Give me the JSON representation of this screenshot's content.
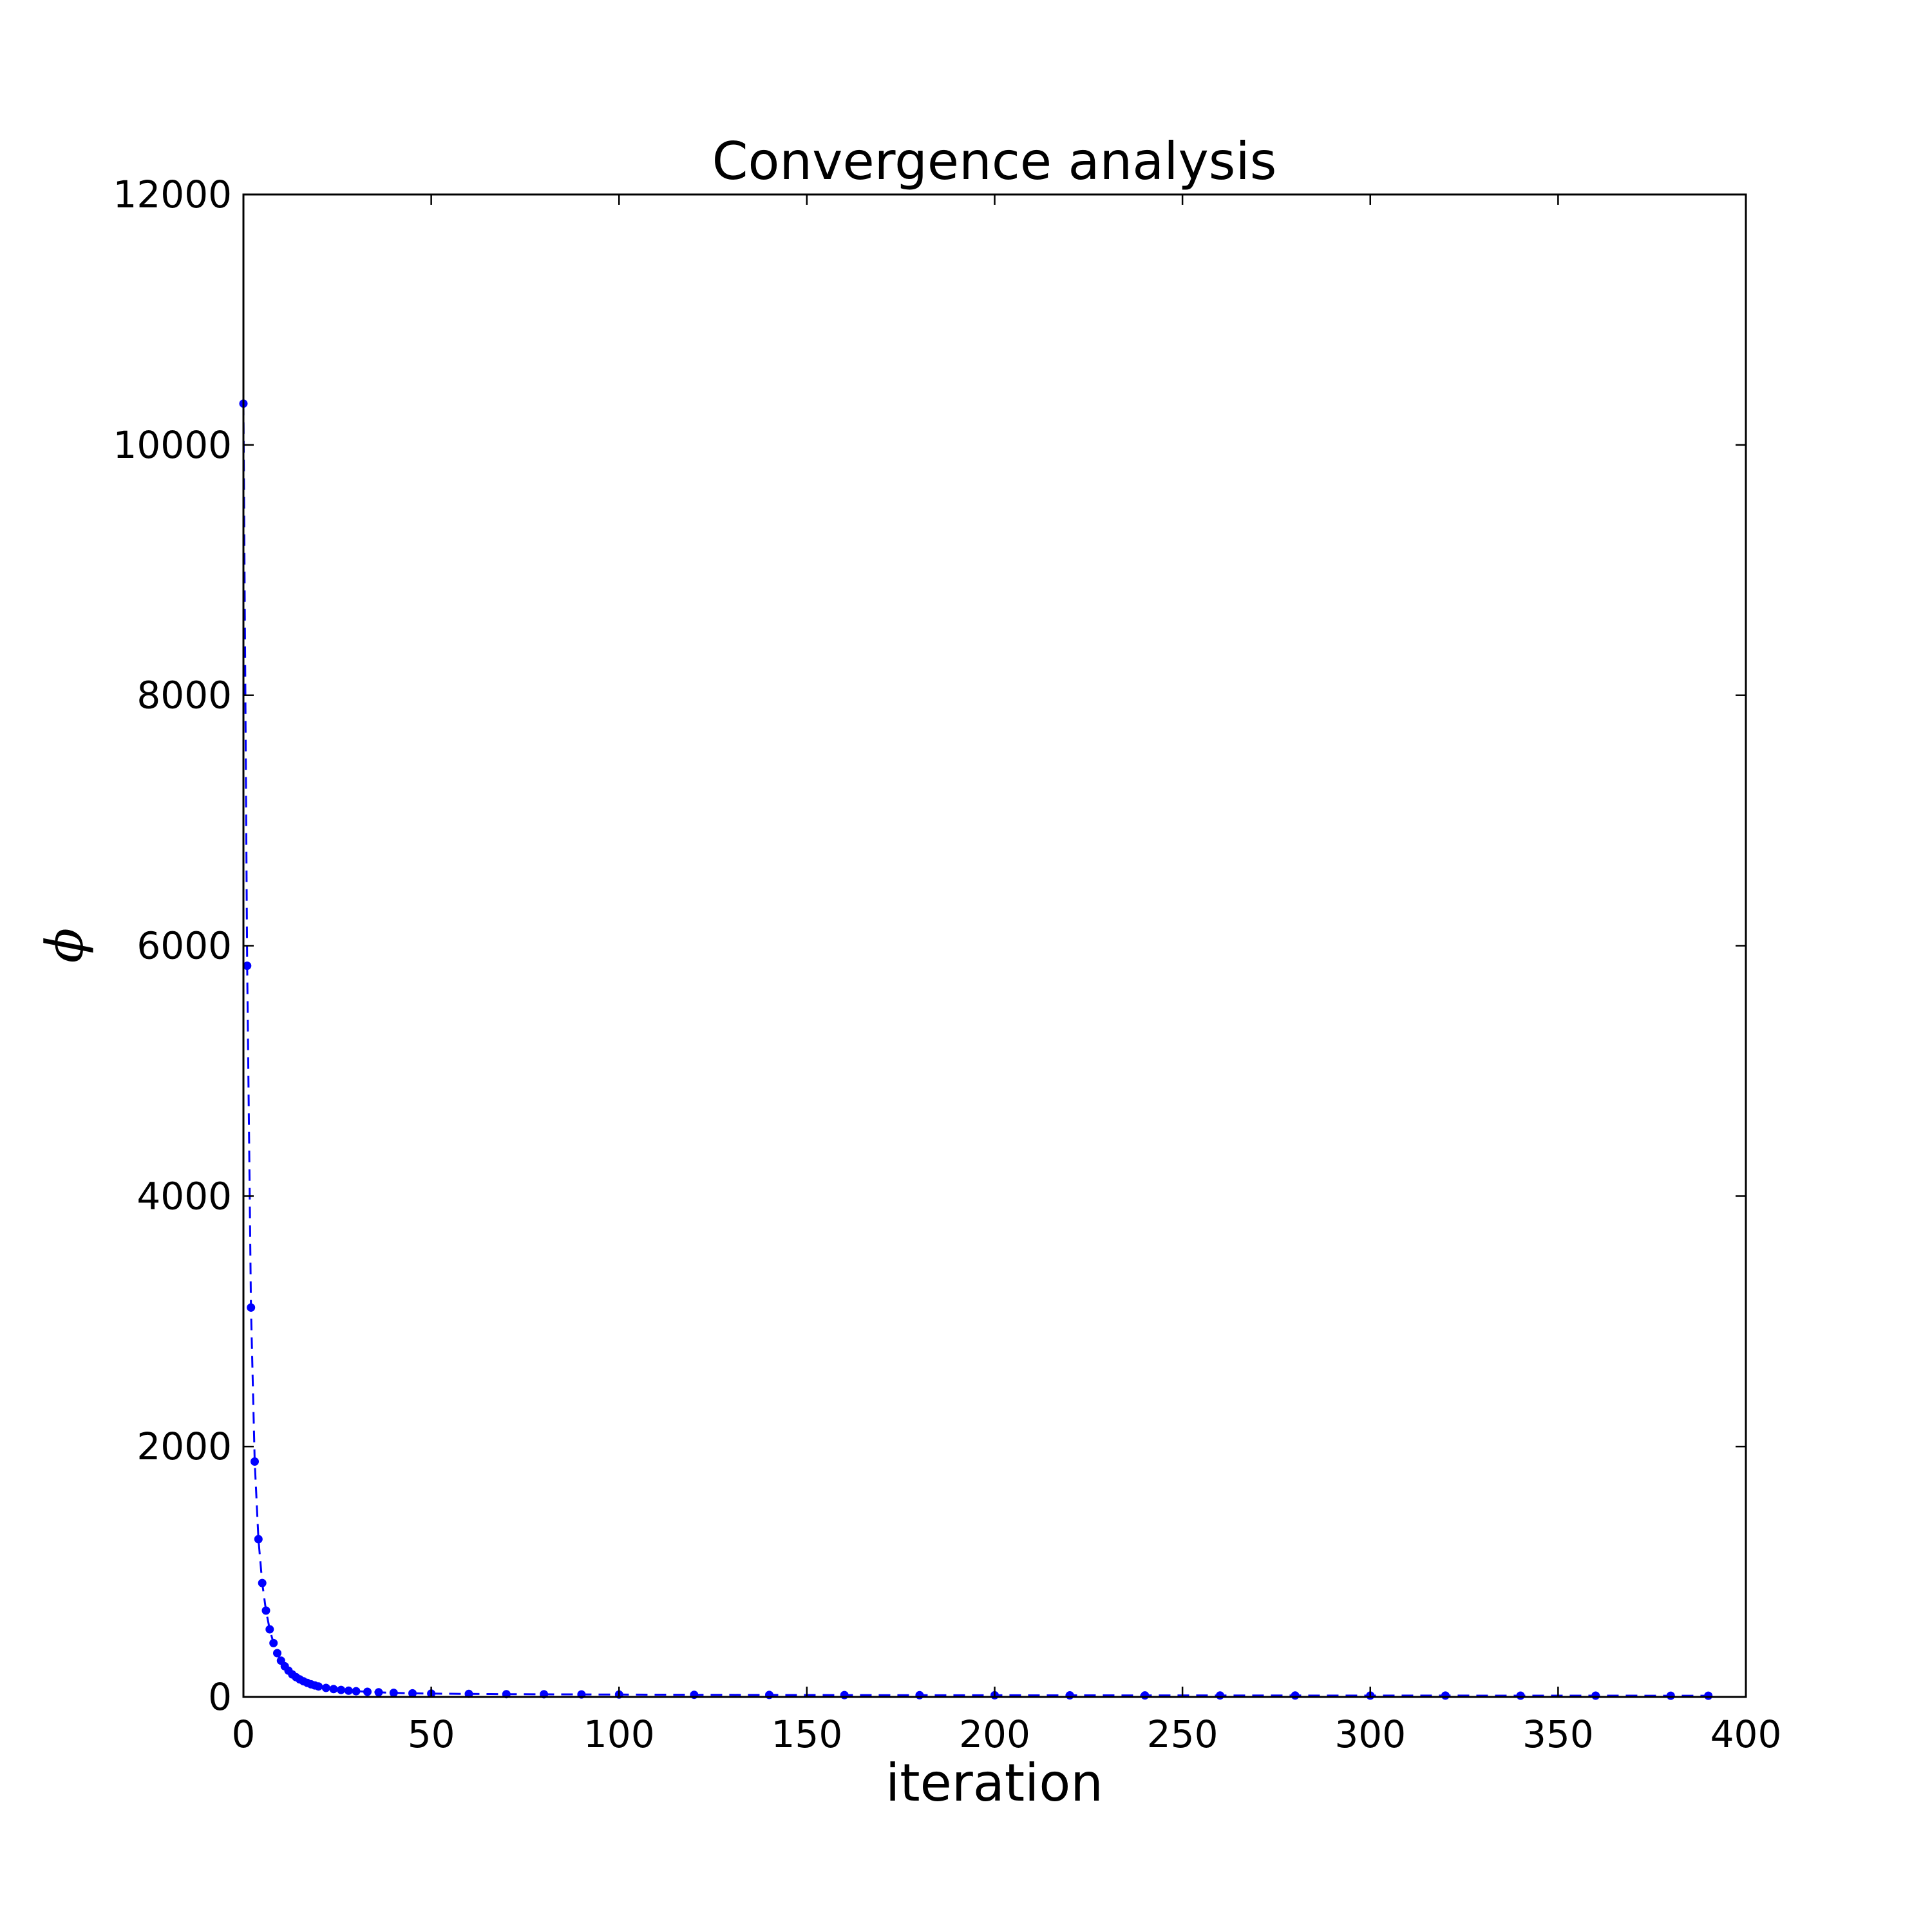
{
  "chart_data": {
    "type": "line",
    "title": "Convergence analysis",
    "xlabel": "iteration",
    "ylabel": "ϕ",
    "xlim": [
      0,
      400
    ],
    "ylim": [
      0,
      12000
    ],
    "x_ticks": [
      "0",
      "50",
      "100",
      "150",
      "200",
      "250",
      "300",
      "350",
      "400"
    ],
    "y_ticks": [
      "0",
      "2000",
      "4000",
      "6000",
      "8000",
      "10000",
      "12000"
    ],
    "grid": false,
    "legend": "none",
    "line_style": "dashed",
    "marker": "dot",
    "color": "#0000ff",
    "series": [
      {
        "x": [
          0,
          1,
          2,
          3,
          4,
          5,
          6,
          7,
          8,
          9,
          10,
          11,
          12,
          13,
          14,
          15,
          16,
          17,
          18,
          19,
          20,
          22,
          24,
          26,
          28,
          30,
          33,
          36,
          40,
          45,
          50,
          60,
          70,
          80,
          90,
          100,
          120,
          140,
          160,
          180,
          200,
          220,
          240,
          260,
          280,
          300,
          320,
          340,
          360,
          380,
          390
        ],
        "y": [
          10330,
          5840,
          3110,
          1880,
          1260,
          910,
          690,
          540,
          430,
          350,
          290,
          245,
          210,
          180,
          158,
          140,
          125,
          112,
          101,
          92,
          84,
          72,
          63,
          56,
          50,
          46,
          41,
          37,
          33,
          29,
          27,
          24,
          22,
          21,
          20,
          19,
          17,
          16,
          15,
          14,
          13.5,
          13,
          12.5,
          12,
          11.5,
          11,
          10.7,
          10.4,
          10.1,
          9.8,
          9.6
        ]
      }
    ]
  }
}
